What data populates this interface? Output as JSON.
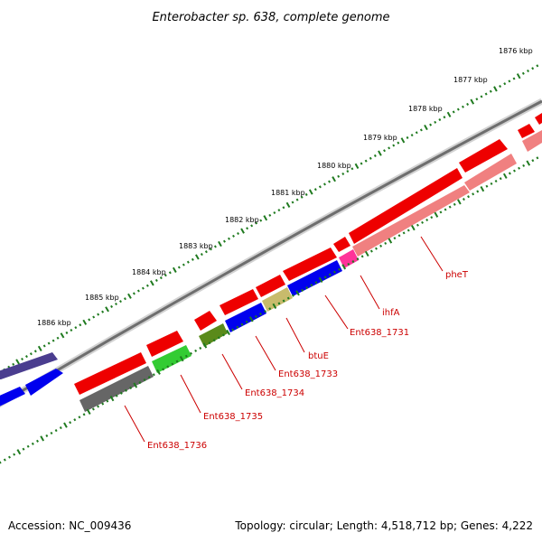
{
  "title": "Enterobacter sp. 638, complete genome",
  "footer": {
    "accession": "Accession: NC_009436",
    "summary": "Topology: circular; Length: 4,518,712 bp; Genes: 4,222"
  },
  "colors": {
    "backbone": "#6e6e6e",
    "ticks": "#1f7a1f",
    "label": "#cc0000",
    "leader": "#cc0000"
  },
  "scale_labels": [
    "1876 kbp",
    "1877 kbp",
    "1878 kbp",
    "1879 kbp",
    "1880 kbp",
    "1881 kbp",
    "1882 kbp",
    "1883 kbp",
    "1884 kbp",
    "1885 kbp",
    "1886 kbp"
  ],
  "gene_labels": [
    {
      "name": "ent638-1736",
      "text": "Ent638_1736"
    },
    {
      "name": "ent638-1735",
      "text": "Ent638_1735"
    },
    {
      "name": "ent638-1734",
      "text": "Ent638_1734"
    },
    {
      "name": "ent638-1733",
      "text": "Ent638_1733"
    },
    {
      "name": "btue",
      "text": "btuE"
    },
    {
      "name": "ent638-1731",
      "text": "Ent638_1731"
    },
    {
      "name": "ihfa",
      "text": "ihfA"
    },
    {
      "name": "phet",
      "text": "pheT"
    }
  ]
}
